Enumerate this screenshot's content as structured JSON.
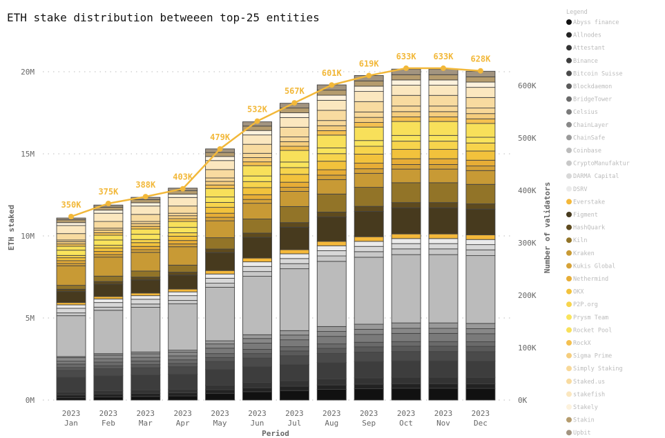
{
  "chart_data": {
    "type": "bar",
    "title": "ETH stake distribution betweeen top-25 entities",
    "xlabel": "Period",
    "ylabel": "ETH staked",
    "y2label": "Number of validators",
    "ylim": [
      0,
      20000000
    ],
    "y2lim": [
      0,
      633000
    ],
    "y_ticks": [
      "0M",
      "5M",
      "10M",
      "15M",
      "20M"
    ],
    "y2_ticks": [
      "0K",
      "100K",
      "200K",
      "300K",
      "400K",
      "500K",
      "600K"
    ],
    "grid": true,
    "stacked": true,
    "legend_title": "Legend",
    "legend_position": "right",
    "year": "2023",
    "categories": [
      "Jan",
      "Feb",
      "Mar",
      "Apr",
      "May",
      "Jun",
      "Jul",
      "Aug",
      "Sep",
      "Oct",
      "Nov",
      "Dec"
    ],
    "unit": "M ETH",
    "series": [
      {
        "name": "Abyss finance",
        "color": "#111111",
        "values": [
          0.14,
          0.19,
          0.22,
          0.25,
          0.41,
          0.51,
          0.58,
          0.65,
          0.69,
          0.72,
          0.72,
          0.71
        ]
      },
      {
        "name": "Allnodes",
        "color": "#222222",
        "values": [
          0.17,
          0.18,
          0.19,
          0.19,
          0.22,
          0.24,
          0.26,
          0.27,
          0.28,
          0.28,
          0.28,
          0.28
        ]
      },
      {
        "name": "Attestant",
        "color": "#333333",
        "values": [
          0.18,
          0.2,
          0.21,
          0.22,
          0.28,
          0.32,
          0.34,
          0.37,
          0.38,
          0.39,
          0.39,
          0.39
        ]
      },
      {
        "name": "Binance",
        "color": "#3d3d3d",
        "values": [
          0.9,
          0.91,
          0.91,
          0.92,
          0.95,
          0.97,
          0.98,
          0.99,
          1.0,
          1.0,
          1.0,
          1.0
        ]
      },
      {
        "name": "Bitcoin Suisse",
        "color": "#4a4a4a",
        "values": [
          0.42,
          0.43,
          0.44,
          0.45,
          0.49,
          0.52,
          0.54,
          0.56,
          0.57,
          0.57,
          0.57,
          0.57
        ]
      },
      {
        "name": "Blockdaemon",
        "color": "#5a5a5a",
        "values": [
          0.17,
          0.18,
          0.19,
          0.2,
          0.24,
          0.27,
          0.29,
          0.31,
          0.32,
          0.32,
          0.32,
          0.32
        ]
      },
      {
        "name": "BridgeTower",
        "color": "#6a6a6a",
        "values": [
          0.21,
          0.22,
          0.22,
          0.22,
          0.24,
          0.26,
          0.26,
          0.27,
          0.28,
          0.28,
          0.28,
          0.28
        ]
      },
      {
        "name": "Celsius",
        "color": "#7a7a7a",
        "values": [
          0.18,
          0.21,
          0.22,
          0.24,
          0.33,
          0.38,
          0.42,
          0.46,
          0.48,
          0.5,
          0.5,
          0.49
        ]
      },
      {
        "name": "ChainLayer",
        "color": "#888888",
        "values": [
          0.21,
          0.22,
          0.22,
          0.23,
          0.26,
          0.28,
          0.29,
          0.3,
          0.31,
          0.31,
          0.31,
          0.31
        ]
      },
      {
        "name": "ChainSafe",
        "color": "#999999",
        "values": [
          0.07,
          0.09,
          0.11,
          0.12,
          0.19,
          0.23,
          0.27,
          0.3,
          0.31,
          0.33,
          0.33,
          0.32
        ]
      },
      {
        "name": "Coinbase",
        "color": "#bbbbbb",
        "values": [
          2.49,
          2.64,
          2.72,
          2.82,
          3.26,
          3.56,
          3.77,
          3.97,
          4.08,
          4.16,
          4.16,
          4.13
        ]
      },
      {
        "name": "CryptoManufaktur",
        "color": "#c8c8c8",
        "values": [
          0.17,
          0.19,
          0.2,
          0.21,
          0.25,
          0.29,
          0.31,
          0.33,
          0.34,
          0.35,
          0.35,
          0.35
        ]
      },
      {
        "name": "DARMA Capital",
        "color": "#d8d8d8",
        "values": [
          0.28,
          0.28,
          0.29,
          0.29,
          0.3,
          0.31,
          0.31,
          0.32,
          0.32,
          0.32,
          0.32,
          0.32
        ]
      },
      {
        "name": "DSRV",
        "color": "#ebebeb",
        "values": [
          0.21,
          0.22,
          0.22,
          0.23,
          0.26,
          0.28,
          0.29,
          0.3,
          0.31,
          0.31,
          0.31,
          0.31
        ]
      },
      {
        "name": "Everstake",
        "color": "#f4b83a",
        "values": [
          0.14,
          0.15,
          0.16,
          0.17,
          0.21,
          0.23,
          0.25,
          0.27,
          0.28,
          0.28,
          0.28,
          0.28
        ]
      },
      {
        "name": "Figment",
        "color": "#473a1e",
        "values": [
          0.67,
          0.75,
          0.8,
          0.85,
          1.09,
          1.26,
          1.37,
          1.48,
          1.54,
          1.59,
          1.59,
          1.57
        ]
      },
      {
        "name": "HashQuark",
        "color": "#5e4a1e",
        "values": [
          0.14,
          0.16,
          0.17,
          0.18,
          0.22,
          0.26,
          0.28,
          0.3,
          0.31,
          0.32,
          0.32,
          0.32
        ]
      },
      {
        "name": "Kiln",
        "color": "#927428",
        "values": [
          0.24,
          0.33,
          0.37,
          0.43,
          0.69,
          0.86,
          0.98,
          1.1,
          1.16,
          1.21,
          1.21,
          1.19
        ]
      },
      {
        "name": "Kraken",
        "color": "#c89a35",
        "values": [
          1.19,
          1.16,
          1.14,
          1.12,
          1.03,
          0.96,
          0.92,
          0.88,
          0.85,
          0.83,
          0.83,
          0.84
        ]
      },
      {
        "name": "Kukis Global",
        "color": "#d6a237",
        "values": [
          0.14,
          0.15,
          0.16,
          0.17,
          0.21,
          0.23,
          0.25,
          0.27,
          0.28,
          0.28,
          0.28,
          0.28
        ]
      },
      {
        "name": "Nethermind",
        "color": "#e7ad36",
        "values": [
          0.17,
          0.19,
          0.2,
          0.21,
          0.25,
          0.29,
          0.31,
          0.33,
          0.34,
          0.35,
          0.35,
          0.35
        ]
      },
      {
        "name": "OKX",
        "color": "#f2c23c",
        "values": [
          0.18,
          0.21,
          0.23,
          0.26,
          0.36,
          0.43,
          0.48,
          0.52,
          0.55,
          0.57,
          0.57,
          0.56
        ]
      },
      {
        "name": "P2P.org",
        "color": "#f7d44c",
        "values": [
          0.14,
          0.17,
          0.19,
          0.21,
          0.3,
          0.37,
          0.41,
          0.46,
          0.48,
          0.5,
          0.5,
          0.49
        ]
      },
      {
        "name": "Prysm Team",
        "color": "#f9e45c",
        "values": [
          0.32,
          0.32,
          0.32,
          0.33,
          0.33,
          0.34,
          0.34,
          0.35,
          0.35,
          0.35,
          0.35,
          0.35
        ]
      },
      {
        "name": "Rocket Pool",
        "color": "#f8e05a",
        "values": [
          0.24,
          0.29,
          0.32,
          0.36,
          0.52,
          0.63,
          0.71,
          0.78,
          0.82,
          0.85,
          0.85,
          0.84
        ]
      },
      {
        "name": "RockX",
        "color": "#f4c050",
        "values": [
          0.14,
          0.15,
          0.16,
          0.17,
          0.21,
          0.23,
          0.25,
          0.27,
          0.28,
          0.28,
          0.28,
          0.28
        ]
      },
      {
        "name": "Sigma Prime",
        "color": "#f5cd7d",
        "values": [
          0.14,
          0.16,
          0.17,
          0.18,
          0.22,
          0.26,
          0.28,
          0.3,
          0.31,
          0.32,
          0.32,
          0.32
        ]
      },
      {
        "name": "Simply Staking",
        "color": "#f8d898",
        "values": [
          0.1,
          0.12,
          0.13,
          0.15,
          0.21,
          0.26,
          0.29,
          0.32,
          0.33,
          0.34,
          0.34,
          0.34
        ]
      },
      {
        "name": "Staked.us",
        "color": "#f8dba0",
        "values": [
          0.39,
          0.41,
          0.43,
          0.44,
          0.51,
          0.55,
          0.59,
          0.62,
          0.63,
          0.65,
          0.65,
          0.64
        ]
      },
      {
        "name": "stakefish",
        "color": "#fbe7bf",
        "values": [
          0.49,
          0.5,
          0.51,
          0.52,
          0.55,
          0.57,
          0.59,
          0.61,
          0.62,
          0.62,
          0.62,
          0.62
        ]
      },
      {
        "name": "Stakely",
        "color": "#fdf2dd",
        "values": [
          0.18,
          0.19,
          0.2,
          0.21,
          0.25,
          0.27,
          0.29,
          0.31,
          0.32,
          0.32,
          0.32,
          0.32
        ]
      },
      {
        "name": "Stakin",
        "color": "#b59c6e",
        "values": [
          0.17,
          0.18,
          0.19,
          0.2,
          0.24,
          0.27,
          0.29,
          0.31,
          0.32,
          0.32,
          0.32,
          0.32
        ]
      },
      {
        "name": "Upbit",
        "color": "#a29480",
        "values": [
          0.11,
          0.13,
          0.14,
          0.16,
          0.22,
          0.26,
          0.29,
          0.32,
          0.33,
          0.34,
          0.34,
          0.34
        ]
      }
    ],
    "line": {
      "name": "Number of validators",
      "color": "#f2b83a",
      "values": [
        350,
        375,
        388,
        403,
        479,
        532,
        567,
        601,
        619,
        633,
        633,
        628
      ],
      "labels": [
        "350K",
        "375K",
        "388K",
        "403K",
        "479K",
        "532K",
        "567K",
        "601K",
        "619K",
        "633K",
        "633K",
        "628K"
      ]
    }
  }
}
